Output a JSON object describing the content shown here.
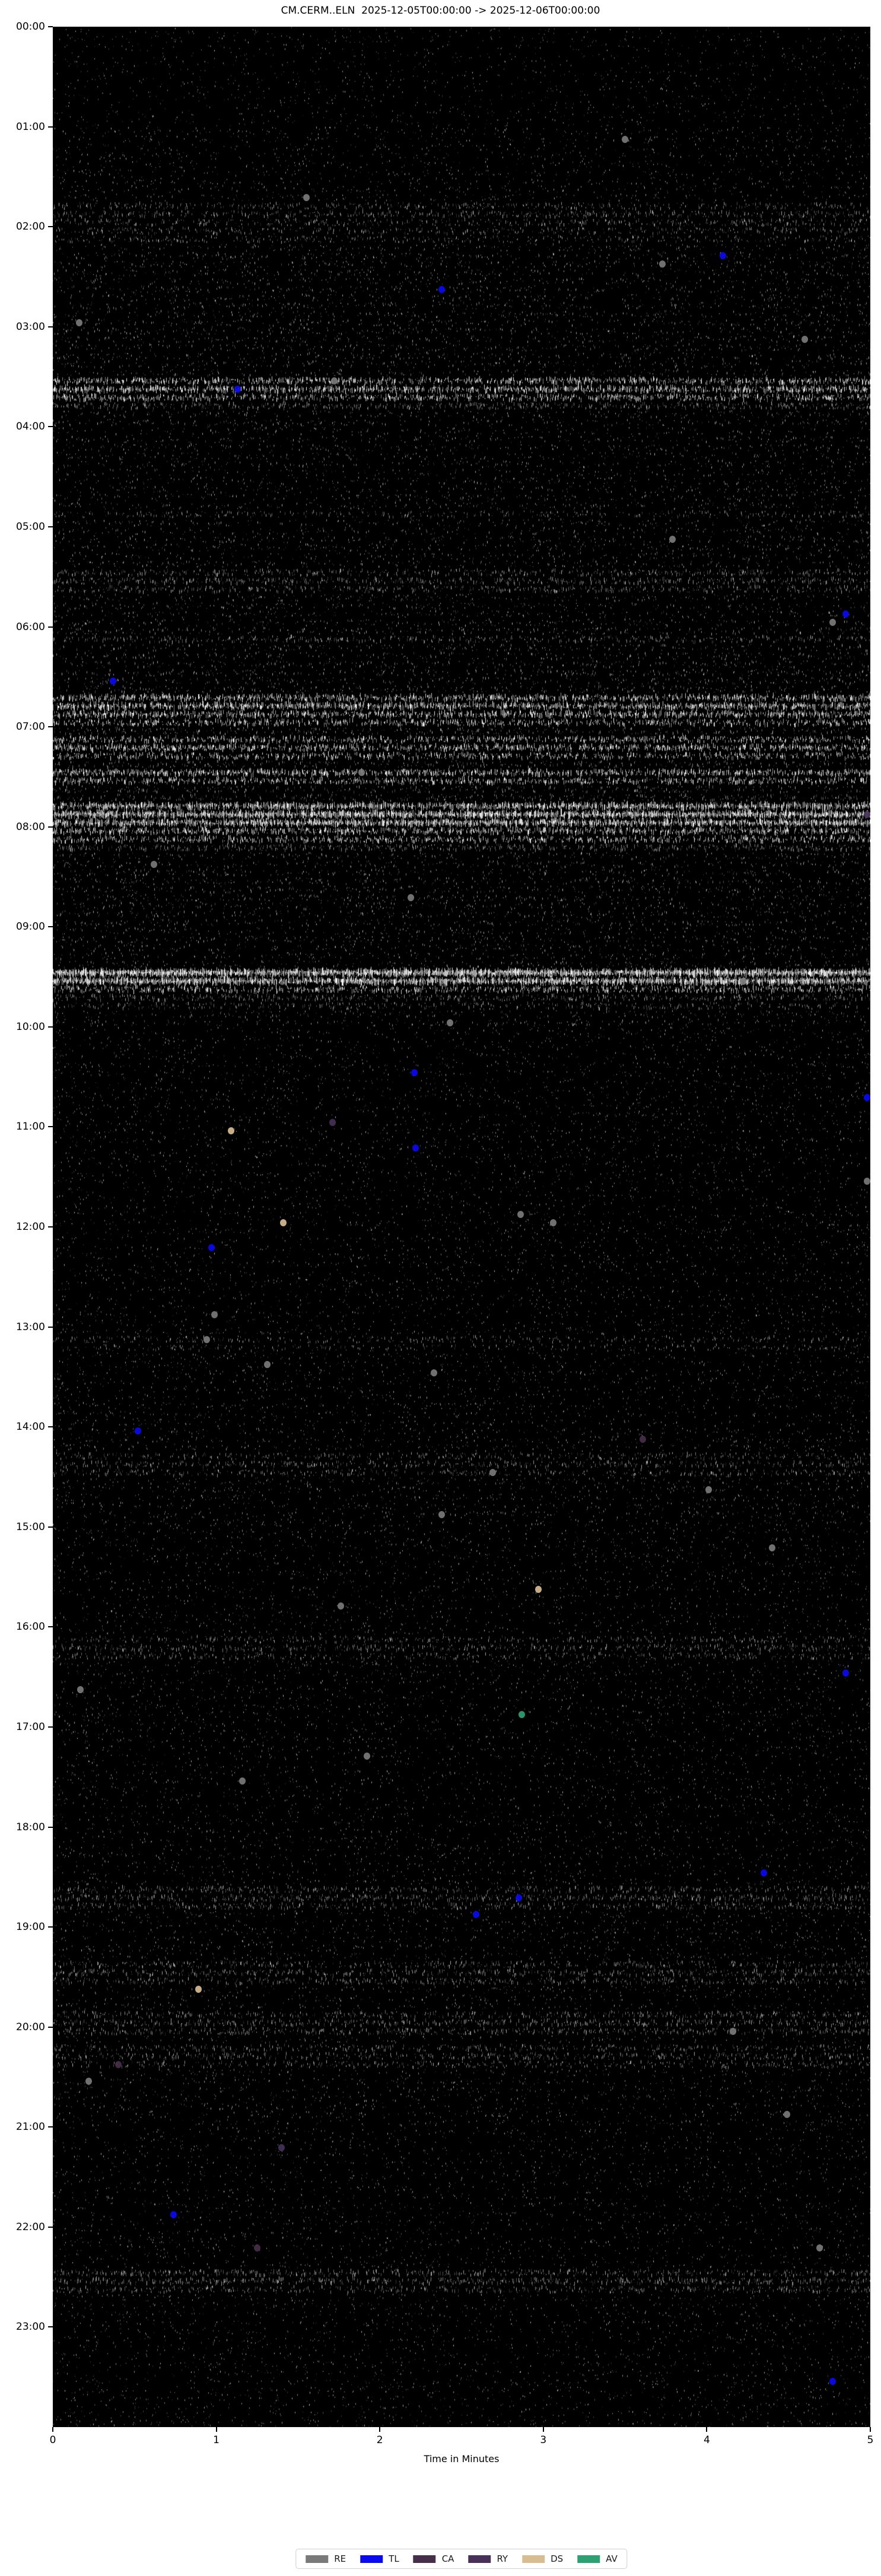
{
  "title": "CM.CERM..ELN  2025-12-05T00:00:00 -> 2025-12-06T00:00:00",
  "xlabel": "Time in Minutes",
  "colors": {
    "figure_background": "#ffffff",
    "plot_background": "#000000",
    "trace": "#ffffff",
    "text": "#000000",
    "legend_border": "#cfcfcf"
  },
  "legend": {
    "items": [
      {
        "label": "RE",
        "color": "#7a7a7a"
      },
      {
        "label": "TL",
        "color": "#0a0af0"
      },
      {
        "label": "CA",
        "color": "#462f48"
      },
      {
        "label": "RY",
        "color": "#473158"
      },
      {
        "label": "DS",
        "color": "#d8bc92"
      },
      {
        "label": "AV",
        "color": "#2ea173"
      }
    ]
  },
  "chart_data": {
    "type": "scatter",
    "description": "Seismic day plot (helicorder) of station CM.CERM..ELN for 2025-12-05: 288 stacked five-minute waveform traces (white on black), hourly y labels, with classified event markers",
    "x_ticks": [
      "0",
      "1",
      "2",
      "3",
      "4",
      "5"
    ],
    "y_ticks": [
      "00:00",
      "01:00",
      "02:00",
      "03:00",
      "04:00",
      "05:00",
      "06:00",
      "07:00",
      "08:00",
      "09:00",
      "10:00",
      "11:00",
      "12:00",
      "13:00",
      "14:00",
      "15:00",
      "16:00",
      "17:00",
      "18:00",
      "19:00",
      "20:00",
      "21:00",
      "22:00",
      "23:00"
    ],
    "xlim": [
      0,
      5
    ],
    "minutes_per_line": 5,
    "lines_per_day": 288,
    "hour_activity": [
      0.03,
      0.08,
      0.14,
      0.14,
      0.12,
      0.13,
      0.18,
      0.22,
      0.16,
      0.13,
      0.07,
      0.07,
      0.07,
      0.08,
      0.1,
      0.07,
      0.08,
      0.07,
      0.08,
      0.09,
      0.09,
      0.06,
      0.07,
      0.06
    ],
    "hot_traces": [
      {
        "t": "01:45",
        "level": 0.3
      },
      {
        "t": "01:50",
        "level": 0.35
      },
      {
        "t": "01:55",
        "level": 0.3
      },
      {
        "t": "02:00",
        "level": 0.28
      },
      {
        "t": "02:05",
        "level": 0.24
      },
      {
        "t": "03:30",
        "level": 0.55
      },
      {
        "t": "03:35",
        "level": 0.65
      },
      {
        "t": "03:40",
        "level": 0.5
      },
      {
        "t": "03:45",
        "level": 0.35
      },
      {
        "t": "04:50",
        "level": 0.25
      },
      {
        "t": "05:25",
        "level": 0.35
      },
      {
        "t": "05:30",
        "level": 0.4
      },
      {
        "t": "05:35",
        "level": 0.33
      },
      {
        "t": "06:05",
        "level": 0.33
      },
      {
        "t": "06:40",
        "level": 0.6
      },
      {
        "t": "06:45",
        "level": 0.7
      },
      {
        "t": "06:50",
        "level": 0.62
      },
      {
        "t": "06:55",
        "level": 0.5
      },
      {
        "t": "07:05",
        "level": 0.5
      },
      {
        "t": "07:10",
        "level": 0.58
      },
      {
        "t": "07:15",
        "level": 0.48
      },
      {
        "t": "07:25",
        "level": 0.62
      },
      {
        "t": "07:30",
        "level": 0.5
      },
      {
        "t": "07:45",
        "level": 0.78
      },
      {
        "t": "07:50",
        "level": 0.92
      },
      {
        "t": "07:55",
        "level": 0.85
      },
      {
        "t": "08:00",
        "level": 0.6
      },
      {
        "t": "08:05",
        "level": 0.48
      },
      {
        "t": "08:10",
        "level": 0.38
      },
      {
        "t": "09:25",
        "level": 1.0
      },
      {
        "t": "09:30",
        "level": 0.92
      },
      {
        "t": "09:35",
        "level": 0.5
      },
      {
        "t": "09:40",
        "level": 0.35
      },
      {
        "t": "09:45",
        "level": 0.28
      },
      {
        "t": "13:05",
        "level": 0.24
      },
      {
        "t": "13:10",
        "level": 0.2
      },
      {
        "t": "14:15",
        "level": 0.28
      },
      {
        "t": "14:20",
        "level": 0.33
      },
      {
        "t": "14:25",
        "level": 0.28
      },
      {
        "t": "16:05",
        "level": 0.28
      },
      {
        "t": "16:10",
        "level": 0.33
      },
      {
        "t": "16:15",
        "level": 0.28
      },
      {
        "t": "18:35",
        "level": 0.33
      },
      {
        "t": "18:40",
        "level": 0.38
      },
      {
        "t": "18:45",
        "level": 0.33
      },
      {
        "t": "19:20",
        "level": 0.33
      },
      {
        "t": "19:25",
        "level": 0.38
      },
      {
        "t": "19:30",
        "level": 0.33
      },
      {
        "t": "19:50",
        "level": 0.33
      },
      {
        "t": "19:55",
        "level": 0.38
      },
      {
        "t": "20:00",
        "level": 0.33
      },
      {
        "t": "20:10",
        "level": 0.28
      },
      {
        "t": "20:15",
        "level": 0.33
      },
      {
        "t": "20:20",
        "level": 0.28
      },
      {
        "t": "22:25",
        "level": 0.38
      },
      {
        "t": "22:30",
        "level": 0.43
      },
      {
        "t": "22:35",
        "level": 0.33
      }
    ],
    "markers": [
      {
        "t": "01:06",
        "m": 3.5,
        "k": "RE"
      },
      {
        "t": "01:41",
        "m": 1.55,
        "k": "RE"
      },
      {
        "t": "02:16",
        "m": 4.1,
        "k": "TL"
      },
      {
        "t": "02:21",
        "m": 3.73,
        "k": "RE"
      },
      {
        "t": "02:37",
        "m": 2.38,
        "k": "TL"
      },
      {
        "t": "02:56",
        "m": 0.16,
        "k": "RE"
      },
      {
        "t": "03:06",
        "m": 4.6,
        "k": "RE"
      },
      {
        "t": "03:32",
        "m": 1.72,
        "k": "RE"
      },
      {
        "t": "03:37",
        "m": 1.13,
        "k": "TL"
      },
      {
        "t": "05:07",
        "m": 3.79,
        "k": "RE"
      },
      {
        "t": "05:51",
        "m": 4.85,
        "k": "TL"
      },
      {
        "t": "05:57",
        "m": 4.77,
        "k": "RE"
      },
      {
        "t": "06:32",
        "m": 0.37,
        "k": "TL"
      },
      {
        "t": "07:27",
        "m": 1.89,
        "k": "RE"
      },
      {
        "t": "07:50",
        "m": 4.98,
        "k": "RY"
      },
      {
        "t": "08:22",
        "m": 0.62,
        "k": "RE"
      },
      {
        "t": "08:43",
        "m": 2.19,
        "k": "RE"
      },
      {
        "t": "09:32",
        "m": 4.22,
        "k": "RE"
      },
      {
        "t": "09:57",
        "m": 2.43,
        "k": "RE"
      },
      {
        "t": "10:27",
        "m": 2.21,
        "k": "TL"
      },
      {
        "t": "10:43",
        "m": 4.98,
        "k": "TL"
      },
      {
        "t": "10:58",
        "m": 1.71,
        "k": "RY"
      },
      {
        "t": "11:02",
        "m": 1.09,
        "k": "DS"
      },
      {
        "t": "11:12",
        "m": 2.22,
        "k": "TL"
      },
      {
        "t": "11:33",
        "m": 4.98,
        "k": "RE"
      },
      {
        "t": "11:52",
        "m": 2.86,
        "k": "RE"
      },
      {
        "t": "11:57",
        "m": 1.41,
        "k": "DS"
      },
      {
        "t": "11:58",
        "m": 3.06,
        "k": "RE"
      },
      {
        "t": "12:13",
        "m": 0.97,
        "k": "TL"
      },
      {
        "t": "12:53",
        "m": 0.99,
        "k": "RE"
      },
      {
        "t": "13:08",
        "m": 0.94,
        "k": "RE"
      },
      {
        "t": "13:23",
        "m": 1.31,
        "k": "RE"
      },
      {
        "t": "13:28",
        "m": 2.33,
        "k": "RE"
      },
      {
        "t": "14:02",
        "m": 0.52,
        "k": "TL"
      },
      {
        "t": "14:08",
        "m": 3.61,
        "k": "CA"
      },
      {
        "t": "14:28",
        "m": 2.69,
        "k": "RE"
      },
      {
        "t": "14:38",
        "m": 4.01,
        "k": "RE"
      },
      {
        "t": "14:53",
        "m": 2.38,
        "k": "RE"
      },
      {
        "t": "15:13",
        "m": 4.4,
        "k": "RE"
      },
      {
        "t": "15:38",
        "m": 2.97,
        "k": "DS"
      },
      {
        "t": "15:47",
        "m": 1.76,
        "k": "RE"
      },
      {
        "t": "16:26",
        "m": 4.85,
        "k": "TL"
      },
      {
        "t": "16:38",
        "m": 0.17,
        "k": "RE"
      },
      {
        "t": "16:53",
        "m": 2.87,
        "k": "AV"
      },
      {
        "t": "17:18",
        "m": 1.92,
        "k": "RE"
      },
      {
        "t": "17:34",
        "m": 1.16,
        "k": "RE"
      },
      {
        "t": "18:28",
        "m": 4.35,
        "k": "TL"
      },
      {
        "t": "18:42",
        "m": 2.85,
        "k": "TL"
      },
      {
        "t": "18:53",
        "m": 2.59,
        "k": "TL"
      },
      {
        "t": "19:38",
        "m": 0.89,
        "k": "DS"
      },
      {
        "t": "20:02",
        "m": 4.16,
        "k": "RE"
      },
      {
        "t": "20:23",
        "m": 0.4,
        "k": "CA"
      },
      {
        "t": "20:34",
        "m": 0.22,
        "k": "RE"
      },
      {
        "t": "20:53",
        "m": 4.49,
        "k": "RE"
      },
      {
        "t": "21:14",
        "m": 1.4,
        "k": "RY"
      },
      {
        "t": "21:53",
        "m": 0.74,
        "k": "TL"
      },
      {
        "t": "22:14",
        "m": 1.25,
        "k": "CA"
      },
      {
        "t": "22:14",
        "m": 4.69,
        "k": "RE"
      },
      {
        "t": "23:34",
        "m": 4.77,
        "k": "TL"
      }
    ]
  }
}
